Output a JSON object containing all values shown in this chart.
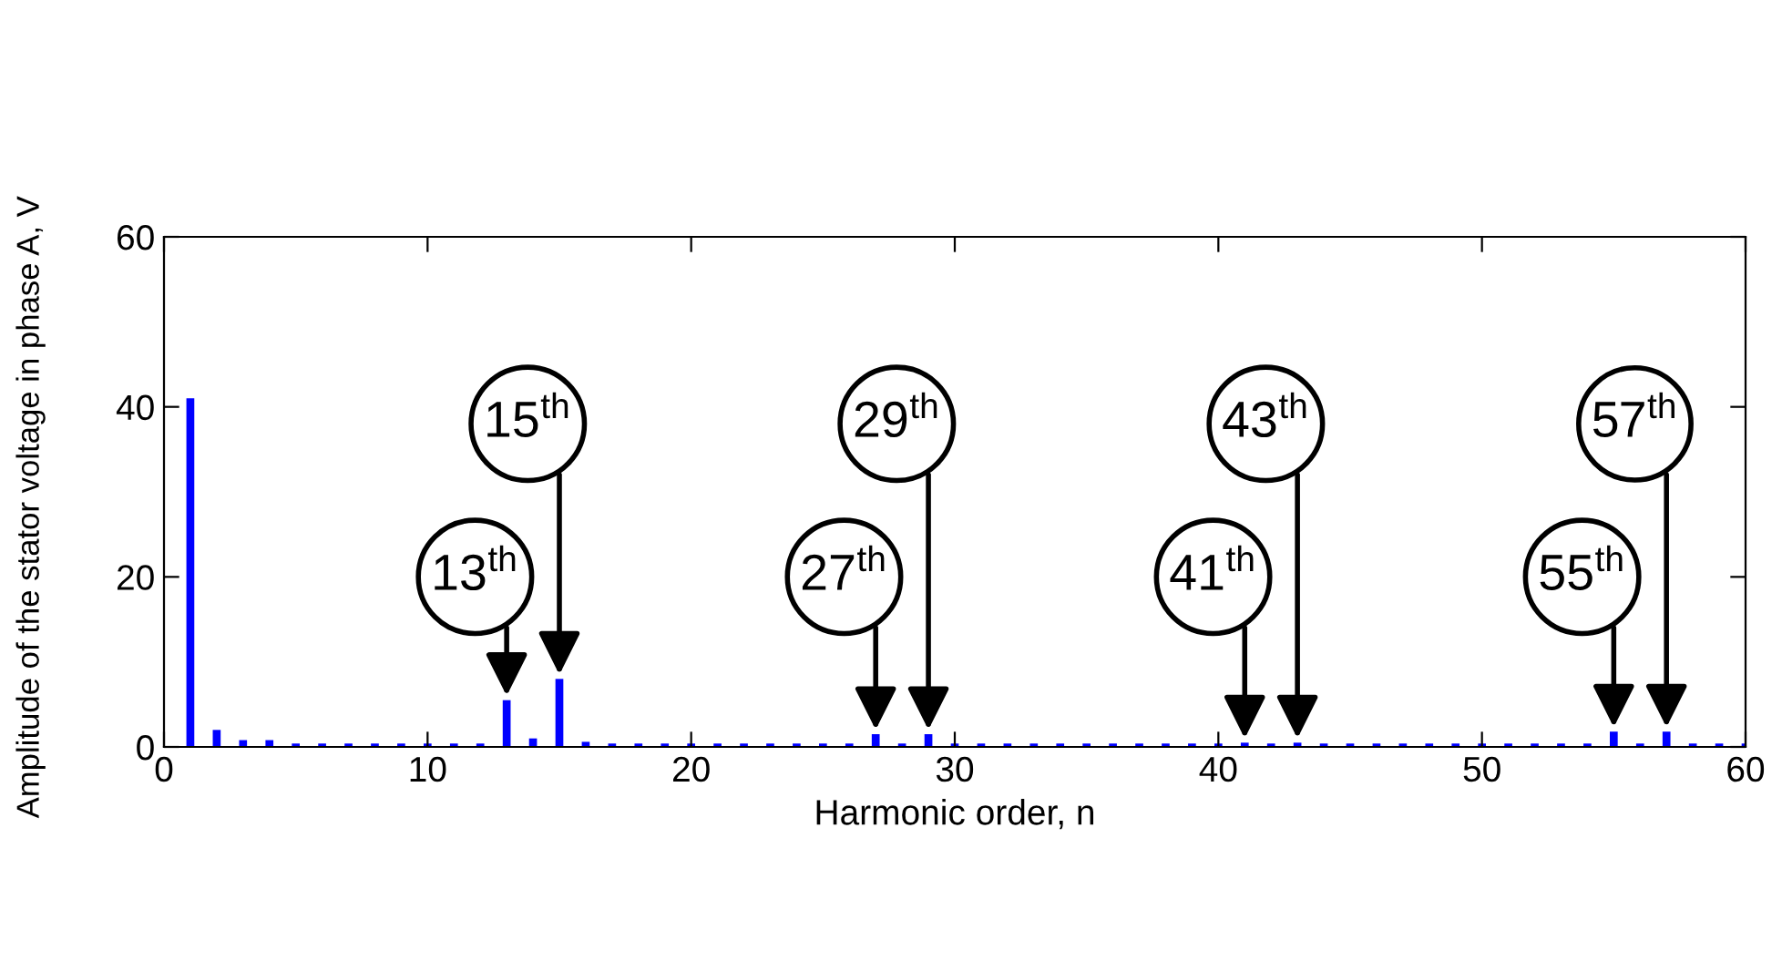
{
  "chart_data": {
    "type": "bar",
    "xlabel": "Harmonic order, n",
    "ylabel": "Amplitude of the stator voltage in phase A, V",
    "x": [
      1,
      2,
      3,
      4,
      5,
      6,
      7,
      8,
      9,
      10,
      11,
      12,
      13,
      14,
      15,
      16,
      17,
      18,
      19,
      20,
      21,
      22,
      23,
      24,
      25,
      26,
      27,
      28,
      29,
      30,
      31,
      32,
      33,
      34,
      35,
      36,
      37,
      38,
      39,
      40,
      41,
      42,
      43,
      44,
      45,
      46,
      47,
      48,
      49,
      50,
      51,
      52,
      53,
      54,
      55,
      56,
      57,
      58,
      59,
      60
    ],
    "values": [
      41,
      2,
      0.8,
      0.8,
      0.4,
      0.4,
      0.4,
      0.4,
      0.4,
      0.4,
      0.4,
      0.4,
      5.5,
      1,
      8,
      0.6,
      0.4,
      0.4,
      0.4,
      0.4,
      0.4,
      0.4,
      0.4,
      0.4,
      0.4,
      0.4,
      1.5,
      0.4,
      1.5,
      0.4,
      0.4,
      0.4,
      0.4,
      0.4,
      0.4,
      0.4,
      0.4,
      0.4,
      0.4,
      0.4,
      0.5,
      0.4,
      0.5,
      0.4,
      0.4,
      0.4,
      0.4,
      0.4,
      0.4,
      0.4,
      0.4,
      0.4,
      0.4,
      0.4,
      1.8,
      0.4,
      1.8,
      0.4,
      0.4,
      0.4
    ],
    "color": "#0000ff",
    "xlim": [
      0,
      60
    ],
    "ylim": [
      0,
      60
    ],
    "xticks": [
      0,
      10,
      20,
      30,
      40,
      50,
      60
    ],
    "yticks": [
      0,
      20,
      40,
      60
    ],
    "grid": false,
    "annotations": [
      {
        "text": "13$^{th}$",
        "x": 13,
        "y": 5.5
      },
      {
        "text": "15$^{th}$",
        "x": 15,
        "y": 8
      },
      {
        "text": "27$^{th}$",
        "x": 27,
        "y": 1.5
      },
      {
        "text": "29$^{th}$",
        "x": 29,
        "y": 1.5
      },
      {
        "text": "41$^{th}$",
        "x": 41,
        "y": 0.5
      },
      {
        "text": "43$^{th}$",
        "x": 43,
        "y": 0.5
      },
      {
        "text": "55$^{th}$",
        "x": 55,
        "y": 1.8
      },
      {
        "text": "57$^{th}$",
        "x": 57,
        "y": 1.8
      }
    ]
  }
}
